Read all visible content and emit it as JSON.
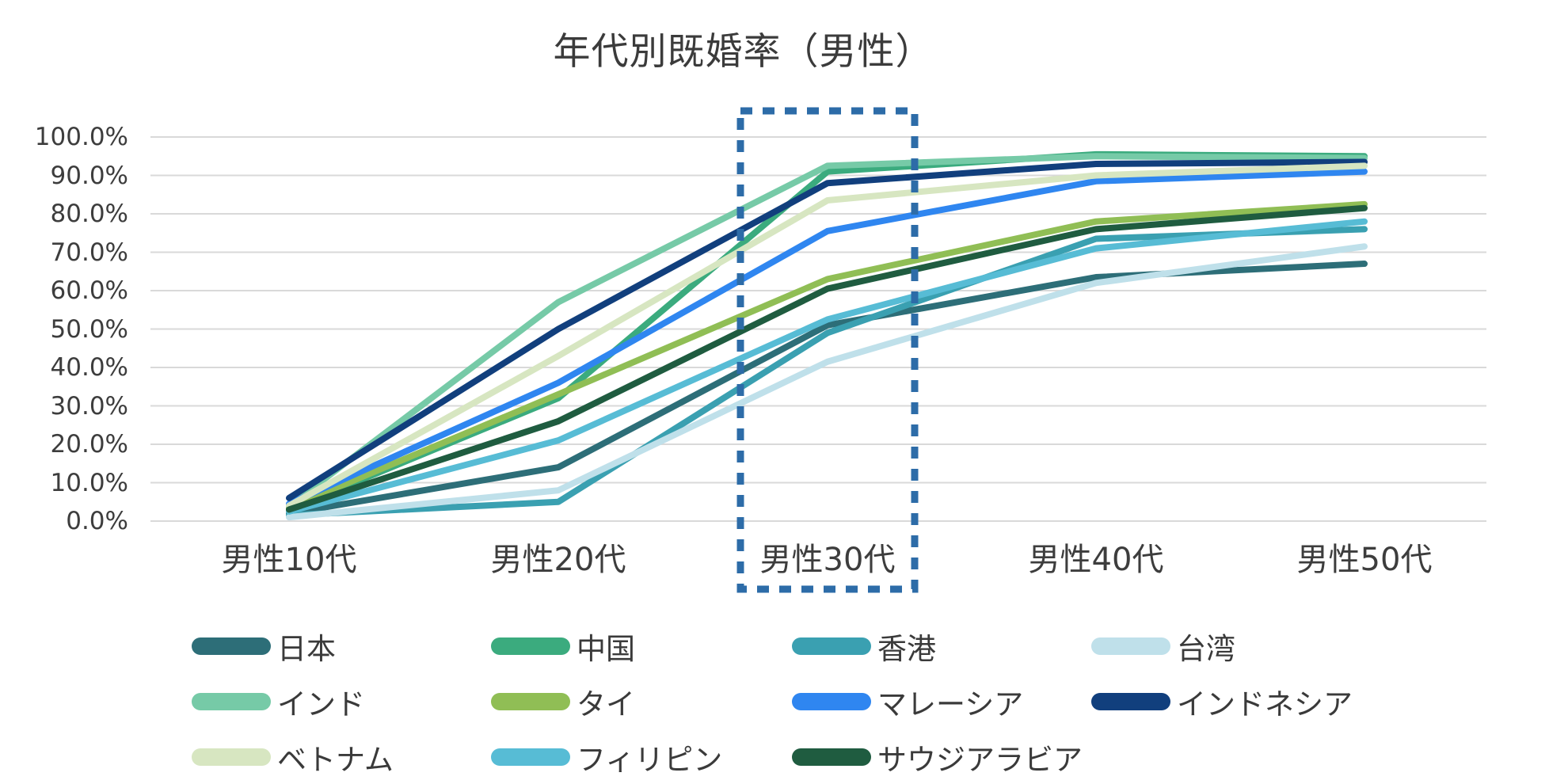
{
  "title": "年代別既婚率（男性）",
  "chart_data": {
    "type": "line",
    "title": "年代別既婚率（男性）",
    "categories": [
      "男性10代",
      "男性20代",
      "男性30代",
      "男性40代",
      "男性50代"
    ],
    "y_ticks": [
      "100.0%",
      "90.0%",
      "80.0%",
      "70.0%",
      "60.0%",
      "50.0%",
      "40.0%",
      "30.0%",
      "20.0%",
      "10.0%",
      "0.0%"
    ],
    "ylim": [
      0,
      100
    ],
    "grid": true,
    "grid_color": "#d9d9d9",
    "axis_label_color": "#3d3d3d",
    "legend_position": "bottom",
    "highlight": {
      "category": "男性30代",
      "shape": "dashed-rectangle",
      "color": "#2d6ca8"
    },
    "series": [
      {
        "name": "日本",
        "key": "japan",
        "color": "#2d6e78",
        "values": [
          2,
          14,
          51,
          63.5,
          67
        ]
      },
      {
        "name": "中国",
        "key": "china",
        "color": "#3bab7e",
        "values": [
          3,
          32,
          91,
          95.5,
          95
        ]
      },
      {
        "name": "香港",
        "key": "hongkong",
        "color": "#3aa0b1",
        "values": [
          1.5,
          5,
          49,
          73.5,
          76
        ]
      },
      {
        "name": "台湾",
        "key": "taiwan",
        "color": "#bfe0ea",
        "values": [
          1,
          8,
          41.5,
          62,
          71.5
        ]
      },
      {
        "name": "インド",
        "key": "india",
        "color": "#76caa7",
        "values": [
          4,
          57,
          92.5,
          95,
          94.5
        ]
      },
      {
        "name": "タイ",
        "key": "thailand",
        "color": "#90be55",
        "values": [
          3.5,
          33,
          63,
          78,
          82.5
        ]
      },
      {
        "name": "マレーシア",
        "key": "malaysia",
        "color": "#2f86f0",
        "values": [
          4.5,
          36,
          75.5,
          88.5,
          91
        ]
      },
      {
        "name": "インドネシア",
        "key": "indonesia",
        "color": "#113f7d",
        "values": [
          6,
          50,
          88,
          93,
          93.5
        ]
      },
      {
        "name": "ベトナム",
        "key": "vietnam",
        "color": "#d7e6c1",
        "values": [
          4,
          43,
          83.5,
          90,
          92.5
        ]
      },
      {
        "name": "フィリピン",
        "key": "philippines",
        "color": "#57bcd5",
        "values": [
          2.5,
          21,
          52.5,
          71,
          78
        ]
      },
      {
        "name": "サウジアラビア",
        "key": "saudiarabia",
        "color": "#1f5c40",
        "values": [
          3,
          26,
          60.5,
          76,
          81.5
        ]
      }
    ]
  }
}
